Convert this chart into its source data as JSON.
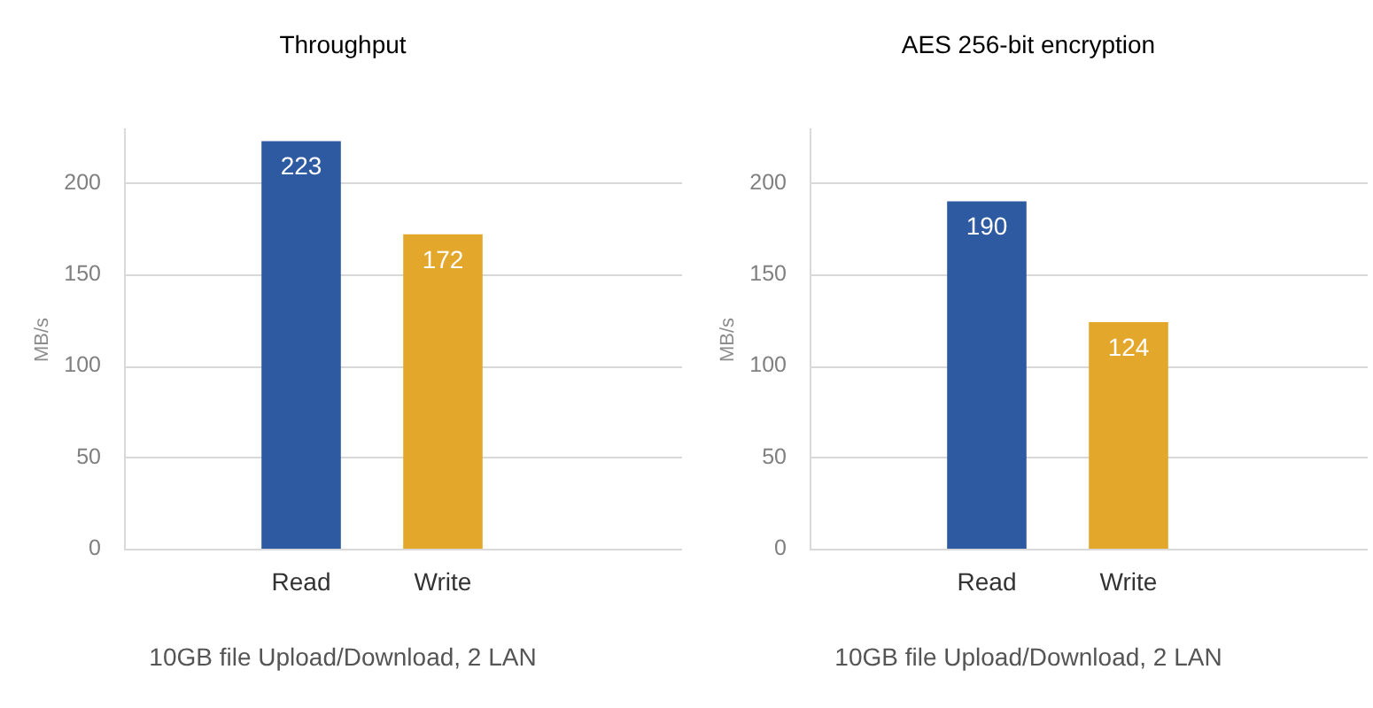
{
  "chart_data": [
    {
      "type": "bar",
      "title": "Throughput",
      "ylabel": "MB/s",
      "categories": [
        "Read",
        "Write"
      ],
      "values": [
        223,
        172
      ],
      "colors": [
        "#2e5aa1",
        "#e3a82b"
      ],
      "ylim": [
        0,
        230
      ],
      "yticks": [
        0,
        50,
        100,
        150,
        200
      ],
      "grid": "y",
      "data_labels": true,
      "annotations": [
        "10GB file Upload/Download, 2 LAN"
      ]
    },
    {
      "type": "bar",
      "title": "AES 256-bit encryption",
      "ylabel": "MB/s",
      "categories": [
        "Read",
        "Write"
      ],
      "values": [
        190,
        124
      ],
      "colors": [
        "#2e5aa1",
        "#e3a82b"
      ],
      "ylim": [
        0,
        230
      ],
      "yticks": [
        0,
        50,
        100,
        150,
        200
      ],
      "grid": "y",
      "data_labels": true,
      "annotations": [
        "10GB file Upload/Download, 2 LAN"
      ]
    }
  ]
}
